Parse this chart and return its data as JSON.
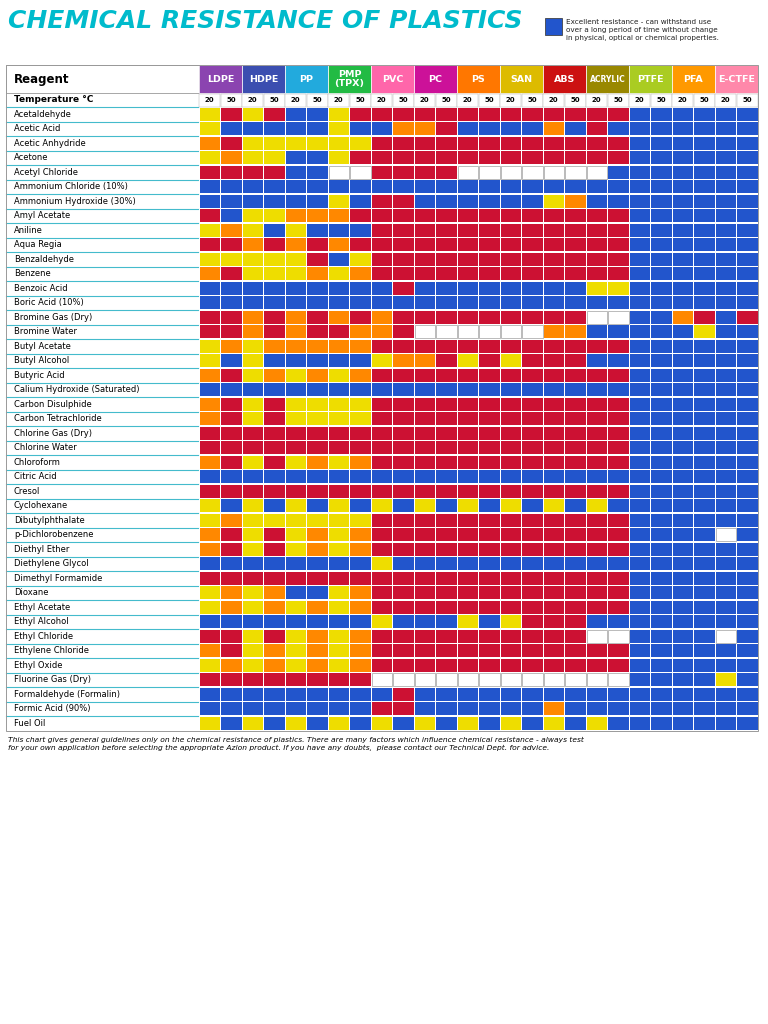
{
  "title": "CHEMICAL RESISTANCE OF PLASTICS",
  "legend_text": "Excellent resistance - can withstand use\nover a long period of time without change\nin physical, optical or chemical properties.",
  "footer_text": "This chart gives general guidelines only on the chemical resistance of plastics. There are many factors which influence chemical resistance - always test\nfor your own application before selecting the appropriate Azlon product. If you have any doubts,  please contact our Technical Dept. for advice.",
  "plastic_names": [
    "LDPE",
    "HDPE",
    "PP",
    "PMP\n(TPX)",
    "PVC",
    "PC",
    "PS",
    "SAN",
    "ABS",
    "ACRYLIC",
    "PTFE",
    "PFA",
    "E-CTFE"
  ],
  "plastic_colors": [
    "#8B44B0",
    "#3B4EB0",
    "#22AADD",
    "#22BB44",
    "#FF66AA",
    "#CC1199",
    "#FF7700",
    "#DDBB00",
    "#CC1111",
    "#998800",
    "#AACC22",
    "#FF9900",
    "#FF88AA"
  ],
  "reagents": [
    "Temperature °C",
    "Acetaldehyde",
    "Acetic Acid",
    "Acetic Anhydride",
    "Acetone",
    "Acetyl Chloride",
    "Ammonium Chloride (10%)",
    "Ammonium Hydroxide (30%)",
    "Amyl Acetate",
    "Aniline",
    "Aqua Regia",
    "Benzaldehyde",
    "Benzene",
    "Benzoic Acid",
    "Boric Acid (10%)",
    "Bromine Gas (Dry)",
    "Bromine Water",
    "Butyl Acetate",
    "Butyl Alcohol",
    "Butyric Acid",
    "Calium Hydroxide (Saturated)",
    "Carbon Disulphide",
    "Carbon Tetrachloride",
    "Chlorine Gas (Dry)",
    "Chlorine Water",
    "Chloroform",
    "Citric Acid",
    "Cresol",
    "Cyclohexane",
    "Dibutylphthalate",
    "p-Dichlorobenzene",
    "Diethyl Ether",
    "Diethylene Glycol",
    "Dimethyl Formamide",
    "Dioxane",
    "Ethyl Acetate",
    "Ethyl Alcohol",
    "Ethyl Chloride",
    "Ethylene Chloride",
    "Ethyl Oxide",
    "Fluorine Gas (Dry)",
    "Formaldehyde (Formalin)",
    "Formic Acid (90%)",
    "Fuel Oil"
  ],
  "cmap": {
    "B": "#2255CC",
    "Y": "#EEDD00",
    "R": "#CC1133",
    "O": "#FF8800",
    "W": "#FFFFFF"
  },
  "grid": [
    [
      "20",
      "50",
      "20",
      "50",
      "20",
      "50",
      "20",
      "50",
      "20",
      "50",
      "20",
      "50",
      "20",
      "50",
      "20",
      "50",
      "20",
      "50",
      "20",
      "50",
      "20",
      "50",
      "20",
      "50",
      "20",
      "50"
    ],
    [
      "Y",
      "R",
      "Y",
      "R",
      "B",
      "B",
      "Y",
      "R",
      "R",
      "R",
      "R",
      "R",
      "R",
      "R",
      "R",
      "R",
      "R",
      "R",
      "R",
      "R",
      "B",
      "B",
      "B",
      "B",
      "B",
      "B"
    ],
    [
      "Y",
      "B",
      "B",
      "B",
      "B",
      "B",
      "Y",
      "B",
      "B",
      "O",
      "O",
      "R",
      "B",
      "B",
      "B",
      "B",
      "O",
      "B",
      "R",
      "B",
      "B",
      "B",
      "B",
      "B",
      "B",
      "B"
    ],
    [
      "O",
      "R",
      "Y",
      "Y",
      "Y",
      "Y",
      "Y",
      "Y",
      "R",
      "R",
      "R",
      "R",
      "R",
      "R",
      "R",
      "R",
      "R",
      "R",
      "R",
      "R",
      "B",
      "B",
      "B",
      "B",
      "B",
      "B"
    ],
    [
      "Y",
      "O",
      "Y",
      "Y",
      "B",
      "B",
      "Y",
      "R",
      "R",
      "R",
      "R",
      "R",
      "R",
      "R",
      "R",
      "R",
      "R",
      "R",
      "R",
      "R",
      "B",
      "B",
      "B",
      "B",
      "B",
      "B"
    ],
    [
      "R",
      "R",
      "R",
      "R",
      "B",
      "B",
      "W",
      "W",
      "R",
      "R",
      "R",
      "R",
      "W",
      "W",
      "W",
      "W",
      "W",
      "W",
      "W",
      "B",
      "B",
      "B",
      "B",
      "B",
      "B",
      "B"
    ],
    [
      "B",
      "B",
      "B",
      "B",
      "B",
      "B",
      "B",
      "B",
      "B",
      "B",
      "B",
      "B",
      "B",
      "B",
      "B",
      "B",
      "B",
      "B",
      "B",
      "B",
      "B",
      "B",
      "B",
      "B",
      "B",
      "B"
    ],
    [
      "B",
      "B",
      "B",
      "B",
      "B",
      "B",
      "Y",
      "B",
      "R",
      "R",
      "B",
      "B",
      "B",
      "B",
      "B",
      "B",
      "Y",
      "O",
      "B",
      "B",
      "B",
      "B",
      "B",
      "B",
      "B",
      "B"
    ],
    [
      "R",
      "B",
      "Y",
      "Y",
      "O",
      "O",
      "O",
      "R",
      "R",
      "R",
      "R",
      "R",
      "R",
      "R",
      "R",
      "R",
      "R",
      "R",
      "R",
      "R",
      "B",
      "B",
      "B",
      "B",
      "B",
      "B"
    ],
    [
      "Y",
      "O",
      "Y",
      "B",
      "Y",
      "B",
      "B",
      "B",
      "R",
      "R",
      "R",
      "R",
      "R",
      "R",
      "R",
      "R",
      "R",
      "R",
      "R",
      "R",
      "B",
      "B",
      "B",
      "B",
      "B",
      "B"
    ],
    [
      "R",
      "R",
      "O",
      "R",
      "O",
      "R",
      "O",
      "R",
      "R",
      "R",
      "R",
      "R",
      "R",
      "R",
      "R",
      "R",
      "R",
      "R",
      "R",
      "R",
      "B",
      "B",
      "B",
      "B",
      "B",
      "B"
    ],
    [
      "Y",
      "Y",
      "Y",
      "Y",
      "Y",
      "R",
      "B",
      "Y",
      "R",
      "R",
      "R",
      "R",
      "R",
      "R",
      "R",
      "R",
      "R",
      "R",
      "R",
      "R",
      "B",
      "B",
      "B",
      "B",
      "B",
      "B"
    ],
    [
      "O",
      "R",
      "Y",
      "Y",
      "Y",
      "O",
      "Y",
      "O",
      "R",
      "R",
      "R",
      "R",
      "R",
      "R",
      "R",
      "R",
      "R",
      "R",
      "R",
      "R",
      "B",
      "B",
      "B",
      "B",
      "B",
      "B"
    ],
    [
      "B",
      "B",
      "B",
      "B",
      "B",
      "B",
      "B",
      "B",
      "B",
      "R",
      "B",
      "B",
      "B",
      "B",
      "B",
      "B",
      "B",
      "B",
      "Y",
      "Y",
      "B",
      "B",
      "B",
      "B",
      "B",
      "B"
    ],
    [
      "B",
      "B",
      "B",
      "B",
      "B",
      "B",
      "B",
      "B",
      "B",
      "B",
      "B",
      "B",
      "B",
      "B",
      "B",
      "B",
      "B",
      "B",
      "B",
      "B",
      "B",
      "B",
      "B",
      "B",
      "B",
      "B"
    ],
    [
      "R",
      "R",
      "O",
      "R",
      "O",
      "R",
      "O",
      "R",
      "O",
      "R",
      "R",
      "R",
      "R",
      "R",
      "R",
      "R",
      "R",
      "R",
      "W",
      "W",
      "B",
      "B",
      "O",
      "R",
      "B",
      "R"
    ],
    [
      "R",
      "R",
      "O",
      "R",
      "O",
      "R",
      "R",
      "O",
      "O",
      "R",
      "W",
      "W",
      "W",
      "W",
      "W",
      "W",
      "O",
      "O",
      "B",
      "B",
      "B",
      "B",
      "B",
      "Y",
      "B",
      "B"
    ],
    [
      "Y",
      "O",
      "Y",
      "O",
      "O",
      "O",
      "O",
      "O",
      "R",
      "R",
      "R",
      "R",
      "R",
      "R",
      "R",
      "R",
      "R",
      "R",
      "R",
      "R",
      "B",
      "B",
      "B",
      "B",
      "B",
      "B"
    ],
    [
      "Y",
      "B",
      "Y",
      "B",
      "B",
      "B",
      "B",
      "B",
      "Y",
      "O",
      "O",
      "R",
      "Y",
      "R",
      "Y",
      "R",
      "R",
      "R",
      "B",
      "B",
      "B",
      "B",
      "B",
      "B",
      "B",
      "B"
    ],
    [
      "O",
      "R",
      "Y",
      "O",
      "Y",
      "O",
      "Y",
      "O",
      "R",
      "R",
      "R",
      "R",
      "R",
      "R",
      "R",
      "R",
      "R",
      "R",
      "R",
      "R",
      "B",
      "B",
      "B",
      "B",
      "B",
      "B"
    ],
    [
      "B",
      "B",
      "B",
      "B",
      "B",
      "B",
      "B",
      "B",
      "B",
      "B",
      "B",
      "B",
      "B",
      "B",
      "B",
      "B",
      "B",
      "B",
      "B",
      "B",
      "B",
      "B",
      "B",
      "B",
      "B",
      "B"
    ],
    [
      "O",
      "R",
      "Y",
      "R",
      "Y",
      "Y",
      "Y",
      "Y",
      "R",
      "R",
      "R",
      "R",
      "R",
      "R",
      "R",
      "R",
      "R",
      "R",
      "R",
      "R",
      "B",
      "B",
      "B",
      "B",
      "B",
      "B"
    ],
    [
      "O",
      "R",
      "Y",
      "R",
      "Y",
      "Y",
      "Y",
      "Y",
      "R",
      "R",
      "R",
      "R",
      "R",
      "R",
      "R",
      "R",
      "R",
      "R",
      "R",
      "R",
      "B",
      "B",
      "B",
      "B",
      "B",
      "B"
    ],
    [
      "R",
      "R",
      "R",
      "R",
      "R",
      "R",
      "R",
      "R",
      "R",
      "R",
      "R",
      "R",
      "R",
      "R",
      "R",
      "R",
      "R",
      "R",
      "R",
      "R",
      "B",
      "B",
      "B",
      "B",
      "B",
      "B"
    ],
    [
      "R",
      "R",
      "R",
      "R",
      "R",
      "R",
      "R",
      "R",
      "R",
      "R",
      "R",
      "R",
      "R",
      "R",
      "R",
      "R",
      "R",
      "R",
      "R",
      "R",
      "B",
      "B",
      "B",
      "B",
      "B",
      "B"
    ],
    [
      "O",
      "R",
      "Y",
      "R",
      "Y",
      "O",
      "Y",
      "O",
      "R",
      "R",
      "R",
      "R",
      "R",
      "R",
      "R",
      "R",
      "R",
      "R",
      "R",
      "R",
      "B",
      "B",
      "B",
      "B",
      "B",
      "B"
    ],
    [
      "B",
      "B",
      "B",
      "B",
      "B",
      "B",
      "B",
      "B",
      "B",
      "B",
      "B",
      "B",
      "B",
      "B",
      "B",
      "B",
      "B",
      "B",
      "B",
      "B",
      "B",
      "B",
      "B",
      "B",
      "B",
      "B"
    ],
    [
      "R",
      "R",
      "R",
      "R",
      "R",
      "R",
      "R",
      "R",
      "R",
      "R",
      "R",
      "R",
      "R",
      "R",
      "R",
      "R",
      "R",
      "R",
      "R",
      "R",
      "B",
      "B",
      "B",
      "B",
      "B",
      "B"
    ],
    [
      "Y",
      "B",
      "Y",
      "B",
      "Y",
      "B",
      "Y",
      "B",
      "Y",
      "B",
      "Y",
      "B",
      "Y",
      "B",
      "Y",
      "B",
      "Y",
      "B",
      "Y",
      "B",
      "B",
      "B",
      "B",
      "B",
      "B",
      "B"
    ],
    [
      "Y",
      "O",
      "Y",
      "Y",
      "Y",
      "Y",
      "Y",
      "Y",
      "R",
      "R",
      "R",
      "R",
      "R",
      "R",
      "R",
      "R",
      "R",
      "R",
      "R",
      "R",
      "B",
      "B",
      "B",
      "B",
      "B",
      "B"
    ],
    [
      "O",
      "R",
      "Y",
      "R",
      "Y",
      "O",
      "Y",
      "O",
      "R",
      "R",
      "R",
      "R",
      "R",
      "R",
      "R",
      "R",
      "R",
      "R",
      "R",
      "R",
      "B",
      "B",
      "B",
      "B",
      "W",
      "B"
    ],
    [
      "O",
      "R",
      "Y",
      "R",
      "Y",
      "O",
      "Y",
      "O",
      "R",
      "R",
      "R",
      "R",
      "R",
      "R",
      "R",
      "R",
      "R",
      "R",
      "R",
      "R",
      "B",
      "B",
      "B",
      "B",
      "B",
      "B"
    ],
    [
      "B",
      "B",
      "B",
      "B",
      "B",
      "B",
      "B",
      "B",
      "Y",
      "B",
      "B",
      "B",
      "B",
      "B",
      "B",
      "B",
      "B",
      "B",
      "B",
      "B",
      "B",
      "B",
      "B",
      "B",
      "B",
      "B"
    ],
    [
      "R",
      "R",
      "R",
      "R",
      "R",
      "R",
      "R",
      "R",
      "R",
      "R",
      "R",
      "R",
      "R",
      "R",
      "R",
      "R",
      "R",
      "R",
      "R",
      "R",
      "B",
      "B",
      "B",
      "B",
      "B",
      "B"
    ],
    [
      "Y",
      "O",
      "Y",
      "O",
      "B",
      "B",
      "Y",
      "O",
      "R",
      "R",
      "R",
      "R",
      "R",
      "R",
      "R",
      "R",
      "R",
      "R",
      "R",
      "R",
      "B",
      "B",
      "B",
      "B",
      "B",
      "B"
    ],
    [
      "Y",
      "O",
      "Y",
      "O",
      "Y",
      "O",
      "Y",
      "O",
      "R",
      "R",
      "R",
      "R",
      "R",
      "R",
      "R",
      "R",
      "R",
      "R",
      "R",
      "R",
      "B",
      "B",
      "B",
      "B",
      "B",
      "B"
    ],
    [
      "B",
      "B",
      "B",
      "B",
      "B",
      "B",
      "B",
      "B",
      "Y",
      "B",
      "B",
      "B",
      "Y",
      "B",
      "Y",
      "R",
      "R",
      "R",
      "B",
      "B",
      "B",
      "B",
      "B",
      "B",
      "B",
      "B"
    ],
    [
      "R",
      "R",
      "Y",
      "R",
      "Y",
      "O",
      "Y",
      "O",
      "R",
      "R",
      "R",
      "R",
      "R",
      "R",
      "R",
      "R",
      "R",
      "R",
      "W",
      "W",
      "B",
      "B",
      "B",
      "B",
      "W",
      "B"
    ],
    [
      "O",
      "R",
      "Y",
      "O",
      "Y",
      "O",
      "Y",
      "O",
      "R",
      "R",
      "R",
      "R",
      "R",
      "R",
      "R",
      "R",
      "R",
      "R",
      "R",
      "R",
      "B",
      "B",
      "B",
      "B",
      "B",
      "B"
    ],
    [
      "Y",
      "O",
      "Y",
      "O",
      "Y",
      "O",
      "Y",
      "O",
      "R",
      "R",
      "R",
      "R",
      "R",
      "R",
      "R",
      "R",
      "R",
      "R",
      "R",
      "R",
      "B",
      "B",
      "B",
      "B",
      "B",
      "B"
    ],
    [
      "R",
      "R",
      "R",
      "R",
      "R",
      "R",
      "R",
      "R",
      "W",
      "W",
      "W",
      "W",
      "W",
      "W",
      "W",
      "W",
      "W",
      "W",
      "W",
      "W",
      "B",
      "B",
      "B",
      "B",
      "Y",
      "B"
    ],
    [
      "B",
      "B",
      "B",
      "B",
      "B",
      "B",
      "B",
      "B",
      "B",
      "R",
      "B",
      "B",
      "B",
      "B",
      "B",
      "B",
      "B",
      "B",
      "B",
      "B",
      "B",
      "B",
      "B",
      "B",
      "B",
      "B"
    ],
    [
      "B",
      "B",
      "B",
      "B",
      "B",
      "B",
      "B",
      "B",
      "R",
      "R",
      "B",
      "B",
      "B",
      "B",
      "B",
      "B",
      "O",
      "B",
      "B",
      "B",
      "B",
      "B",
      "B",
      "B",
      "B",
      "B"
    ],
    [
      "Y",
      "B",
      "Y",
      "B",
      "Y",
      "B",
      "Y",
      "B",
      "Y",
      "B",
      "Y",
      "B",
      "Y",
      "B",
      "Y",
      "B",
      "Y",
      "B",
      "Y",
      "B",
      "B",
      "B",
      "B",
      "B",
      "B",
      "B"
    ]
  ]
}
